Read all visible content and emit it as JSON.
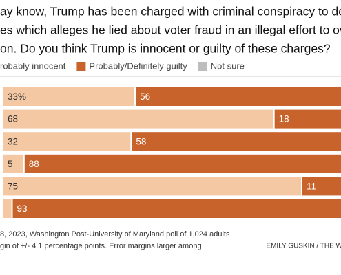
{
  "chart_data": {
    "type": "stacked-bar",
    "title_lines": [
      "ay know, Trump has been charged with criminal conspiracy to def",
      "es which alleges he lied about voter fraud in an illegal effort to ove",
      "on. Do you think Trump is innocent or guilty of these charges?"
    ],
    "categories": [
      null,
      null,
      null,
      null,
      null,
      null
    ],
    "series": [
      {
        "name": "robably innocent",
        "color": "#f3c8a3",
        "label_color": "#333333",
        "values": [
          33,
          68,
          32,
          5,
          75,
          2
        ],
        "value_labels": [
          "33%",
          "68",
          "32",
          "5",
          "75",
          null
        ]
      },
      {
        "name": "Probably/Definitely guilty",
        "color": "#c8632b",
        "label_color": "#ffffff",
        "values": [
          56,
          18,
          58,
          88,
          11,
          93
        ]
      },
      {
        "name": "Not sure",
        "color": "#bdbdbd",
        "label_color": "#333333",
        "values": [
          null,
          null,
          null,
          null,
          null,
          null
        ]
      }
    ],
    "xlim": [
      0,
      100
    ],
    "footer_lines": [
      "8, 2023, Washington Post-University of Maryland poll of 1,024 adults",
      "gin of +/- 4.1 percentage points. Error margins larger among"
    ],
    "credit": "EMILY GUSKIN / THE W"
  }
}
